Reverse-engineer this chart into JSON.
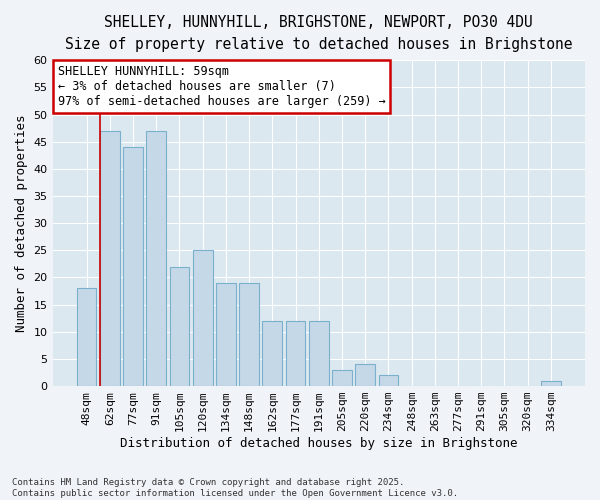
{
  "title_line1": "SHELLEY, HUNNYHILL, BRIGHSTONE, NEWPORT, PO30 4DU",
  "title_line2": "Size of property relative to detached houses in Brighstone",
  "xlabel": "Distribution of detached houses by size in Brighstone",
  "ylabel": "Number of detached properties",
  "categories": [
    "48sqm",
    "62sqm",
    "77sqm",
    "91sqm",
    "105sqm",
    "120sqm",
    "134sqm",
    "148sqm",
    "162sqm",
    "177sqm",
    "191sqm",
    "205sqm",
    "220sqm",
    "234sqm",
    "248sqm",
    "263sqm",
    "277sqm",
    "291sqm",
    "305sqm",
    "320sqm",
    "334sqm"
  ],
  "values": [
    18,
    47,
    44,
    47,
    22,
    25,
    19,
    19,
    12,
    12,
    12,
    3,
    4,
    2,
    0,
    0,
    0,
    0,
    0,
    0,
    1
  ],
  "bar_color": "#c5d8e8",
  "bar_edge_color": "#7ab0cc",
  "annotation_text": "SHELLEY HUNNYHILL: 59sqm\n← 3% of detached houses are smaller (7)\n97% of semi-detached houses are larger (259) →",
  "annotation_box_facecolor": "#ffffff",
  "annotation_edge_color": "#cc0000",
  "highlight_bar_index": 1,
  "vline_color": "#cc0000",
  "bg_color": "#f0f4f8",
  "plot_bg_color": "#dce8f0",
  "grid_color": "#ffffff",
  "ylim": [
    0,
    60
  ],
  "yticks": [
    0,
    5,
    10,
    15,
    20,
    25,
    30,
    35,
    40,
    45,
    50,
    55,
    60
  ],
  "footer_text": "Contains HM Land Registry data © Crown copyright and database right 2025.\nContains public sector information licensed under the Open Government Licence v3.0.",
  "title_fontsize": 10.5,
  "subtitle_fontsize": 9.5,
  "axis_label_fontsize": 9,
  "tick_fontsize": 8,
  "annotation_fontsize": 8.5,
  "footer_fontsize": 6.5
}
